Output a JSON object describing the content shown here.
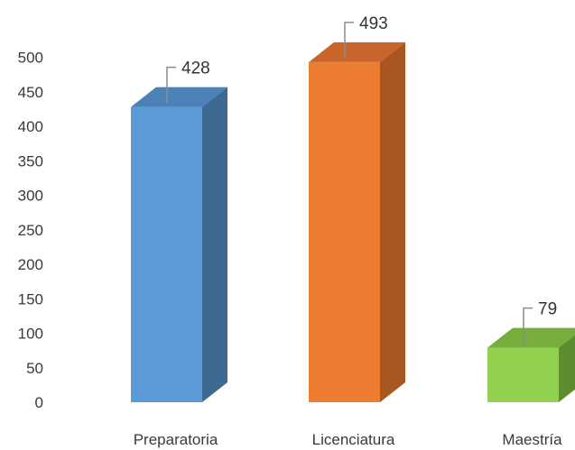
{
  "chart_data": {
    "type": "bar",
    "style": "3d-column",
    "categories": [
      "Preparatoria",
      "Licenciatura",
      "Maestría"
    ],
    "values": [
      428,
      493,
      79
    ],
    "colors": [
      "#5b9bd5",
      "#ed7d31",
      "#92d050"
    ],
    "side_colors": [
      "#3e6a92",
      "#a7571f",
      "#5e8d30"
    ],
    "top_colors": [
      "#4a82b8",
      "#c9642a",
      "#76ad3c"
    ],
    "ylim": [
      0,
      500
    ],
    "yticks": [
      0,
      50,
      100,
      150,
      200,
      250,
      300,
      350,
      400,
      450,
      500
    ],
    "grid": false,
    "legend": "none",
    "title": "",
    "xlabel": "",
    "ylabel": ""
  }
}
